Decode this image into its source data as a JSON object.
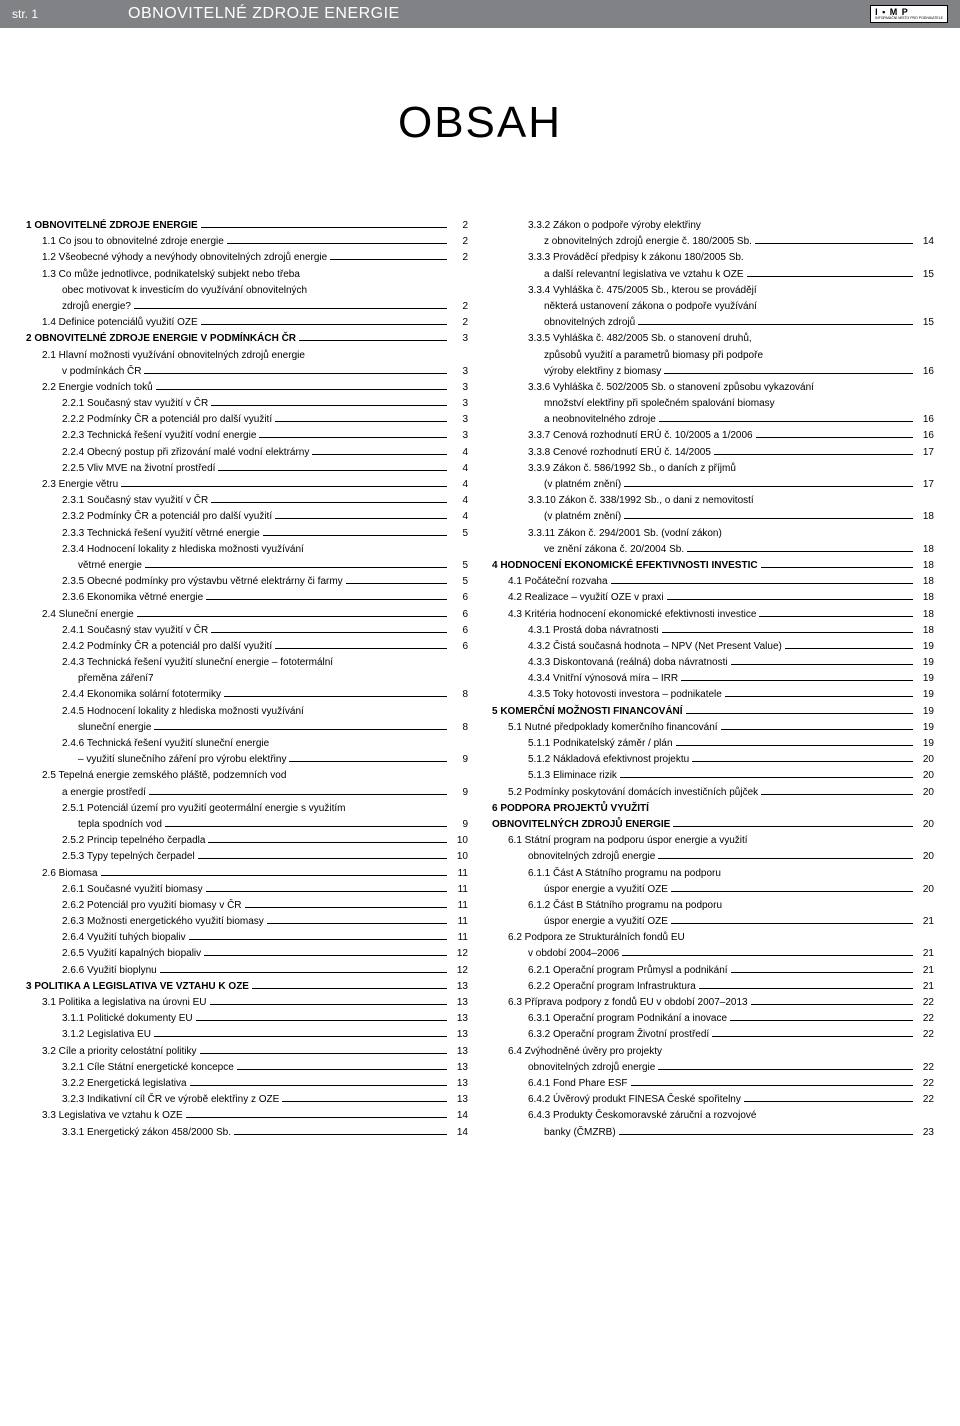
{
  "header": {
    "left": "str. 1",
    "center": "OBNOVITELNÉ ZDROJE ENERGIE",
    "logo_top": "I ▪ M P",
    "logo_bottom": "INFORMAČNÍ MÍSTO PRO PODNIKATELE"
  },
  "title": "OBSAH",
  "left_col": [
    {
      "t": "1 OBNOVITELNÉ ZDROJE ENERGIE",
      "p": "2",
      "b": true,
      "i": 0
    },
    {
      "t": "1.1 Co jsou to obnovitelné zdroje energie",
      "p": "2",
      "i": 1
    },
    {
      "t": "1.2 Všeobecné výhody a nevýhody obnovitelných zdrojů energie",
      "p": "2",
      "i": 1
    },
    {
      "t": "1.3 Co může jednotlivce, podnikatelský subjekt nebo třeba",
      "i": 1
    },
    {
      "t": "obec motivovat k investicím do využívání obnovitelných",
      "i": 1,
      "c": true
    },
    {
      "t": "zdrojů energie?",
      "p": "2",
      "i": 1,
      "c": true
    },
    {
      "t": "1.4 Definice potenciálů využití OZE",
      "p": "2",
      "i": 1
    },
    {
      "t": "2 OBNOVITELNÉ ZDROJE ENERGIE V PODMÍNKÁCH ČR",
      "p": "3",
      "b": true,
      "i": 0
    },
    {
      "t": "2.1 Hlavní možnosti využívání obnovitelných zdrojů energie",
      "i": 1
    },
    {
      "t": "v podmínkách ČR",
      "p": "3",
      "i": 1,
      "c": true
    },
    {
      "t": "2.2 Energie vodních toků",
      "p": "3",
      "i": 1
    },
    {
      "t": "2.2.1 Současný stav využití v ČR",
      "p": "3",
      "i": 2
    },
    {
      "t": "2.2.2 Podmínky ČR a potenciál pro další využití",
      "p": "3",
      "i": 2
    },
    {
      "t": "2.2.3 Technická řešení využití vodní energie",
      "p": "3",
      "i": 2
    },
    {
      "t": "2.2.4 Obecný postup při zřizování malé vodní elektrárny",
      "p": "4",
      "i": 2
    },
    {
      "t": "2.2.5 Vliv MVE na životní prostředí",
      "p": "4",
      "i": 2
    },
    {
      "t": "2.3 Energie větru",
      "p": "4",
      "i": 1
    },
    {
      "t": "2.3.1 Současný stav využití v ČR",
      "p": "4",
      "i": 2
    },
    {
      "t": "2.3.2 Podmínky ČR a potenciál pro další využití",
      "p": "4",
      "i": 2
    },
    {
      "t": "2.3.3 Technická řešení využití větrné energie",
      "p": "5",
      "i": 2
    },
    {
      "t": "2.3.4 Hodnocení lokality z hlediska možnosti využívání",
      "i": 2
    },
    {
      "t": "větrné energie",
      "p": "5",
      "i": 2,
      "c": true
    },
    {
      "t": "2.3.5 Obecné podmínky pro výstavbu větrné elektrárny či farmy",
      "p": "5",
      "i": 2
    },
    {
      "t": "2.3.6 Ekonomika větrné energie",
      "p": "6",
      "i": 2
    },
    {
      "t": "2.4 Sluneční energie",
      "p": "6",
      "i": 1
    },
    {
      "t": "2.4.1 Současný stav využití v ČR",
      "p": "6",
      "i": 2
    },
    {
      "t": "2.4.2 Podmínky ČR a potenciál pro další využití",
      "p": "6",
      "i": 2
    },
    {
      "t": "2.4.3 Technická řešení využití sluneční energie – fototermální",
      "i": 2
    },
    {
      "t": "přeměna záření7",
      "i": 2,
      "c": true
    },
    {
      "t": "2.4.4 Ekonomika solární fototermiky",
      "p": "8",
      "i": 2
    },
    {
      "t": "2.4.5 Hodnocení lokality z hlediska možnosti využívání",
      "i": 2
    },
    {
      "t": "sluneční energie",
      "p": "8",
      "i": 2,
      "c": true
    },
    {
      "t": "2.4.6 Technická řešení využití sluneční energie",
      "i": 2
    },
    {
      "t": "– využití slunečního záření pro výrobu elektřiny",
      "p": "9",
      "i": 2,
      "c": true
    },
    {
      "t": "2.5 Tepelná energie zemského pláště, podzemních vod",
      "i": 1
    },
    {
      "t": "a energie prostředí",
      "p": "9",
      "i": 1,
      "c": true
    },
    {
      "t": "2.5.1 Potenciál území pro využití geotermální energie s využitím",
      "i": 2
    },
    {
      "t": "tepla spodních vod",
      "p": "9",
      "i": 2,
      "c": true
    },
    {
      "t": "2.5.2 Princip tepelného čerpadla",
      "p": "10",
      "i": 2
    },
    {
      "t": "2.5.3 Typy tepelných čerpadel",
      "p": "10",
      "i": 2
    },
    {
      "t": "2.6 Biomasa",
      "p": "11",
      "i": 1
    },
    {
      "t": "2.6.1 Současné využití biomasy",
      "p": "11",
      "i": 2
    },
    {
      "t": "2.6.2 Potenciál pro využití biomasy v ČR",
      "p": "11",
      "i": 2
    },
    {
      "t": "2.6.3 Možnosti energetického využití biomasy",
      "p": "11",
      "i": 2
    },
    {
      "t": "2.6.4 Využití tuhých biopaliv",
      "p": "11",
      "i": 2
    },
    {
      "t": "2.6.5 Využití kapalných biopaliv",
      "p": "12",
      "i": 2
    },
    {
      "t": "2.6.6 Využití bioplynu",
      "p": "12",
      "i": 2
    },
    {
      "t": "3 POLITIKA A LEGISLATIVA VE VZTAHU K OZE",
      "p": "13",
      "b": true,
      "i": 0
    },
    {
      "t": "3.1 Politika a legislativa na úrovni EU",
      "p": "13",
      "i": 1
    },
    {
      "t": "3.1.1 Politické dokumenty EU",
      "p": "13",
      "i": 2
    },
    {
      "t": "3.1.2 Legislativa EU",
      "p": "13",
      "i": 2
    },
    {
      "t": "3.2 Cíle a priority celostátní politiky",
      "p": "13",
      "i": 1
    },
    {
      "t": "3.2.1 Cíle Státní energetické koncepce",
      "p": "13",
      "i": 2
    },
    {
      "t": "3.2.2 Energetická legislativa",
      "p": "13",
      "i": 2
    },
    {
      "t": "3.2.3 Indikativní cíl ČR ve výrobě elektřiny z OZE",
      "p": "13",
      "i": 2
    },
    {
      "t": "3.3 Legislativa ve vztahu k OZE",
      "p": "14",
      "i": 1
    },
    {
      "t": "3.3.1 Energetický zákon 458/2000 Sb.",
      "p": "14",
      "i": 2
    }
  ],
  "right_col": [
    {
      "t": "3.3.2 Zákon o podpoře výroby elektřiny",
      "i": 2
    },
    {
      "t": "z obnovitelných zdrojů energie č. 180/2005 Sb.",
      "p": "14",
      "i": 2,
      "c": true
    },
    {
      "t": "3.3.3 Prováděcí předpisy k zákonu 180/2005 Sb.",
      "i": 2
    },
    {
      "t": "a další relevantní legislativa ve vztahu k OZE",
      "p": "15",
      "i": 2,
      "c": true
    },
    {
      "t": "3.3.4 Vyhláška č. 475/2005 Sb., kterou se provádějí",
      "i": 2
    },
    {
      "t": "některá ustanovení zákona o podpoře využívání",
      "i": 2,
      "c": true
    },
    {
      "t": "obnovitelných zdrojů",
      "p": "15",
      "i": 2,
      "c": true
    },
    {
      "t": "3.3.5 Vyhláška č. 482/2005 Sb. o stanovení druhů,",
      "i": 2
    },
    {
      "t": "způsobů využití a parametrů biomasy při podpoře",
      "i": 2,
      "c": true
    },
    {
      "t": "výroby elektřiny z biomasy",
      "p": "16",
      "i": 2,
      "c": true
    },
    {
      "t": "3.3.6 Vyhláška č. 502/2005 Sb. o stanovení způsobu vykazování",
      "i": 2
    },
    {
      "t": "množství elektřiny při společném spalování biomasy",
      "i": 2,
      "c": true
    },
    {
      "t": "a neobnovitelného zdroje",
      "p": "16",
      "i": 2,
      "c": true
    },
    {
      "t": "3.3.7 Cenová rozhodnutí ERÚ č. 10/2005 a 1/2006",
      "p": "16",
      "i": 2
    },
    {
      "t": "3.3.8 Cenové rozhodnutí ERÚ č. 14/2005",
      "p": "17",
      "i": 2
    },
    {
      "t": "3.3.9 Zákon č. 586/1992 Sb., o daních z příjmů",
      "i": 2
    },
    {
      "t": "(v platném znění)",
      "p": "17",
      "i": 2,
      "c": true
    },
    {
      "t": "3.3.10 Zákon č. 338/1992 Sb., o dani z nemovitostí",
      "i": 2
    },
    {
      "t": "(v platném znění)",
      "p": "18",
      "i": 2,
      "c": true
    },
    {
      "t": "3.3.11 Zákon č. 294/2001 Sb. (vodní zákon)",
      "i": 2
    },
    {
      "t": "ve znění zákona č. 20/2004 Sb.",
      "p": "18",
      "i": 2,
      "c": true
    },
    {
      "t": "4 HODNOCENÍ EKONOMICKÉ EFEKTIVNOSTI INVESTIC",
      "p": "18",
      "b": true,
      "i": 0
    },
    {
      "t": "4.1 Počáteční rozvaha",
      "p": "18",
      "i": 1
    },
    {
      "t": "4.2 Realizace – využití OZE v praxi",
      "p": "18",
      "i": 1
    },
    {
      "t": "4.3 Kritéria hodnocení ekonomické efektivnosti investice",
      "p": "18",
      "i": 1
    },
    {
      "t": "4.3.1 Prostá doba návratnosti",
      "p": "18",
      "i": 2
    },
    {
      "t": "4.3.2 Čistá současná hodnota – NPV (Net Present Value)",
      "p": "19",
      "i": 2
    },
    {
      "t": "4.3.3 Diskontovaná (reálná) doba návratnosti",
      "p": "19",
      "i": 2
    },
    {
      "t": "4.3.4 Vnitřní výnosová míra – IRR",
      "p": "19",
      "i": 2
    },
    {
      "t": "4.3.5 Toky hotovosti investora – podnikatele",
      "p": "19",
      "i": 2
    },
    {
      "t": "5 KOMERČNÍ MOŽNOSTI FINANCOVÁNÍ",
      "p": "19",
      "b": true,
      "i": 0
    },
    {
      "t": "5.1 Nutné předpoklady komerčního financování",
      "p": "19",
      "i": 1
    },
    {
      "t": "5.1.1 Podnikatelský záměr / plán",
      "p": "19",
      "i": 2
    },
    {
      "t": "5.1.2 Nákladová efektivnost projektu",
      "p": "20",
      "i": 2
    },
    {
      "t": "5.1.3 Eliminace rizik",
      "p": "20",
      "i": 2
    },
    {
      "t": "5.2 Podmínky poskytování domácích investičních půjček",
      "p": "20",
      "i": 1
    },
    {
      "t": "6 PODPORA PROJEKTŮ VYUŽITÍ",
      "b": true,
      "i": 0
    },
    {
      "t": "OBNOVITELNÝCH ZDROJŮ ENERGIE",
      "p": "20",
      "b": true,
      "i": 0
    },
    {
      "t": "6.1 Státní program na podporu úspor energie a využití",
      "i": 1
    },
    {
      "t": "obnovitelných zdrojů energie",
      "p": "20",
      "i": 1,
      "c": true
    },
    {
      "t": "6.1.1 Část A Státního programu na podporu",
      "i": 2
    },
    {
      "t": "úspor energie a využití OZE",
      "p": "20",
      "i": 2,
      "c": true
    },
    {
      "t": "6.1.2 Část B Státního programu na podporu",
      "i": 2
    },
    {
      "t": "úspor energie a využití OZE",
      "p": "21",
      "i": 2,
      "c": true
    },
    {
      "t": "6.2 Podpora ze Strukturálních fondů EU",
      "i": 1
    },
    {
      "t": "v období 2004–2006",
      "p": "21",
      "i": 1,
      "c": true
    },
    {
      "t": "6.2.1 Operační program Průmysl a podnikání",
      "p": "21",
      "i": 2
    },
    {
      "t": "6.2.2 Operační program Infrastruktura",
      "p": "21",
      "i": 2
    },
    {
      "t": "6.3 Příprava podpory z fondů EU v období 2007–2013",
      "p": "22",
      "i": 1
    },
    {
      "t": "6.3.1 Operační program Podnikání a inovace",
      "p": "22",
      "i": 2
    },
    {
      "t": "6.3.2 Operační program Životní prostředí",
      "p": "22",
      "i": 2
    },
    {
      "t": "6.4 Zvýhodněné úvěry pro projekty",
      "i": 1
    },
    {
      "t": "obnovitelných zdrojů energie",
      "p": "22",
      "i": 1,
      "c": true
    },
    {
      "t": "6.4.1 Fond Phare ESF",
      "p": "22",
      "i": 2
    },
    {
      "t": "6.4.2 Úvěrový produkt FINESA České spořitelny",
      "p": "22",
      "i": 2
    },
    {
      "t": "6.4.3 Produkty Českomoravské záruční a rozvojové",
      "i": 2
    },
    {
      "t": "banky (ČMZRB)",
      "p": "23",
      "i": 2,
      "c": true
    }
  ]
}
